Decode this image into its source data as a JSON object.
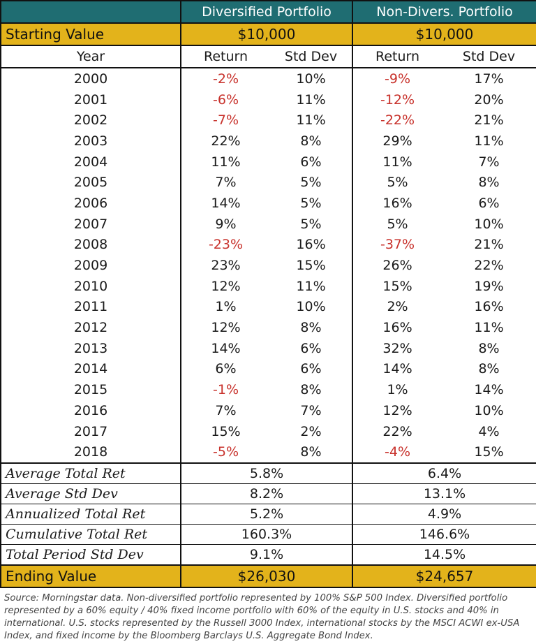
{
  "header": {
    "col1": "Diversified Portfolio",
    "col2": "Non-Divers. Portfolio"
  },
  "starting": {
    "label": "Starting Value",
    "div": "$10,000",
    "nondiv": "$10,000"
  },
  "subheader": {
    "year": "Year",
    "ret1": "Return",
    "sd1": "Std Dev",
    "ret2": "Return",
    "sd2": "Std Dev"
  },
  "rows": [
    {
      "year": "2000",
      "dr": "-2%",
      "ds": "10%",
      "nr": "-9%",
      "ns": "17%"
    },
    {
      "year": "2001",
      "dr": "-6%",
      "ds": "11%",
      "nr": "-12%",
      "ns": "20%"
    },
    {
      "year": "2002",
      "dr": "-7%",
      "ds": "11%",
      "nr": "-22%",
      "ns": "21%"
    },
    {
      "year": "2003",
      "dr": "22%",
      "ds": "8%",
      "nr": "29%",
      "ns": "11%"
    },
    {
      "year": "2004",
      "dr": "11%",
      "ds": "6%",
      "nr": "11%",
      "ns": "7%"
    },
    {
      "year": "2005",
      "dr": "7%",
      "ds": "5%",
      "nr": "5%",
      "ns": "8%"
    },
    {
      "year": "2006",
      "dr": "14%",
      "ds": "5%",
      "nr": "16%",
      "ns": "6%"
    },
    {
      "year": "2007",
      "dr": "9%",
      "ds": "5%",
      "nr": "5%",
      "ns": "10%"
    },
    {
      "year": "2008",
      "dr": "-23%",
      "ds": "16%",
      "nr": "-37%",
      "ns": "21%"
    },
    {
      "year": "2009",
      "dr": "23%",
      "ds": "15%",
      "nr": "26%",
      "ns": "22%"
    },
    {
      "year": "2010",
      "dr": "12%",
      "ds": "11%",
      "nr": "15%",
      "ns": "19%"
    },
    {
      "year": "2011",
      "dr": "1%",
      "ds": "10%",
      "nr": "2%",
      "ns": "16%"
    },
    {
      "year": "2012",
      "dr": "12%",
      "ds": "8%",
      "nr": "16%",
      "ns": "11%"
    },
    {
      "year": "2013",
      "dr": "14%",
      "ds": "6%",
      "nr": "32%",
      "ns": "8%"
    },
    {
      "year": "2014",
      "dr": "6%",
      "ds": "6%",
      "nr": "14%",
      "ns": "8%"
    },
    {
      "year": "2015",
      "dr": "-1%",
      "ds": "8%",
      "nr": "1%",
      "ns": "14%"
    },
    {
      "year": "2016",
      "dr": "7%",
      "ds": "7%",
      "nr": "12%",
      "ns": "10%"
    },
    {
      "year": "2017",
      "dr": "15%",
      "ds": "2%",
      "nr": "22%",
      "ns": "4%"
    },
    {
      "year": "2018",
      "dr": "-5%",
      "ds": "8%",
      "nr": "-4%",
      "ns": "15%"
    }
  ],
  "summary": [
    {
      "label": "Average Total Ret",
      "div": "5.8%",
      "nondiv": "6.4%"
    },
    {
      "label": "Average Std Dev",
      "div": "8.2%",
      "nondiv": "13.1%"
    },
    {
      "label": "Annualized Total Ret",
      "div": "5.2%",
      "nondiv": "4.9%"
    },
    {
      "label": "Cumulative Total Ret",
      "div": "160.3%",
      "nondiv": "146.6%"
    },
    {
      "label": "Total Period Std Dev",
      "div": "9.1%",
      "nondiv": "14.5%"
    }
  ],
  "ending": {
    "label": "Ending Value",
    "div": "$26,030",
    "nondiv": "$24,657"
  },
  "footer": "Source: Morningstar data. Non-diversified portfolio represented by 100% S&P 500 Index. Diversified portfolio represented by a 60% equity / 40% fixed income portfolio with 60% of the equity in U.S. stocks and 40% in international. U.S. stocks represented by the Russell 3000 Index, international stocks by the MSCI ACWI ex-USA Index, and fixed income by the Bloomberg Barclays U.S. Aggregate Bond Index.",
  "colors": {
    "header_bg": "#1f6d72",
    "highlight_bg": "#e3b31b",
    "negative": "#c8322c"
  }
}
